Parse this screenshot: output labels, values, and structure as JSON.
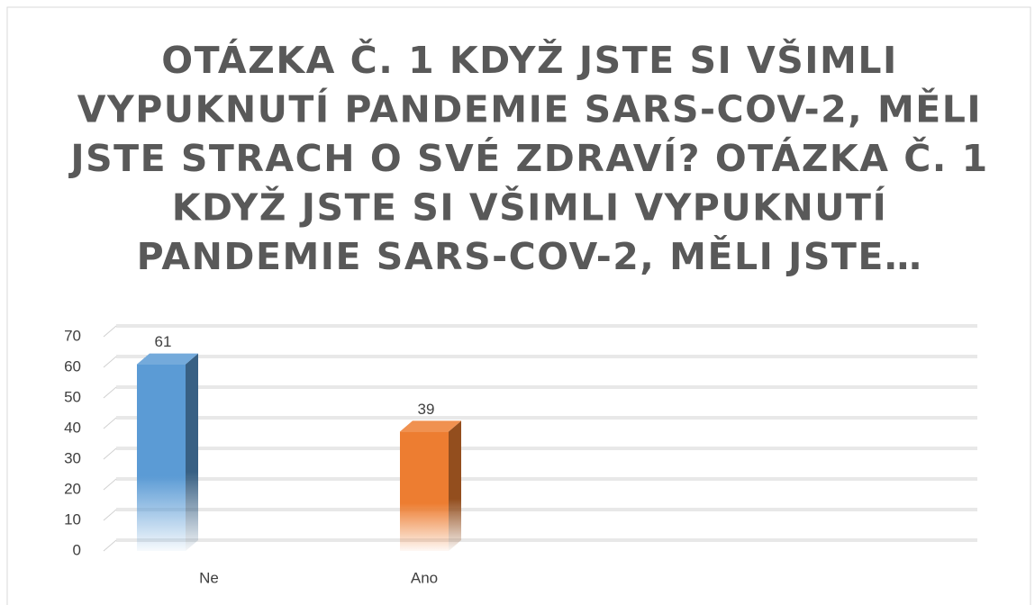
{
  "chart_data": {
    "type": "bar3d",
    "title": [
      "OTÁZKA Č. 1 KDYŽ JSTE SI VŠIMLI",
      "VYPUKNUTÍ PANDEMIE SARS-COV-2, MĚLI",
      "JSTE STRACH O SVÉ ZDRAVÍ? OTÁZKA Č. 1",
      "KDYŽ JSTE SI VŠIMLI VYPUKNUTÍ",
      "PANDEMIE SARS-COV-2, MĚLI JSTE…"
    ],
    "categories": [
      "Ne",
      "Ano"
    ],
    "values": [
      61,
      39
    ],
    "colors": [
      "#5b9bd5",
      "#ed7d31"
    ],
    "ylim": [
      0,
      70
    ],
    "yticks": [
      0,
      10,
      20,
      30,
      40,
      50,
      60,
      70
    ],
    "grid": true
  }
}
